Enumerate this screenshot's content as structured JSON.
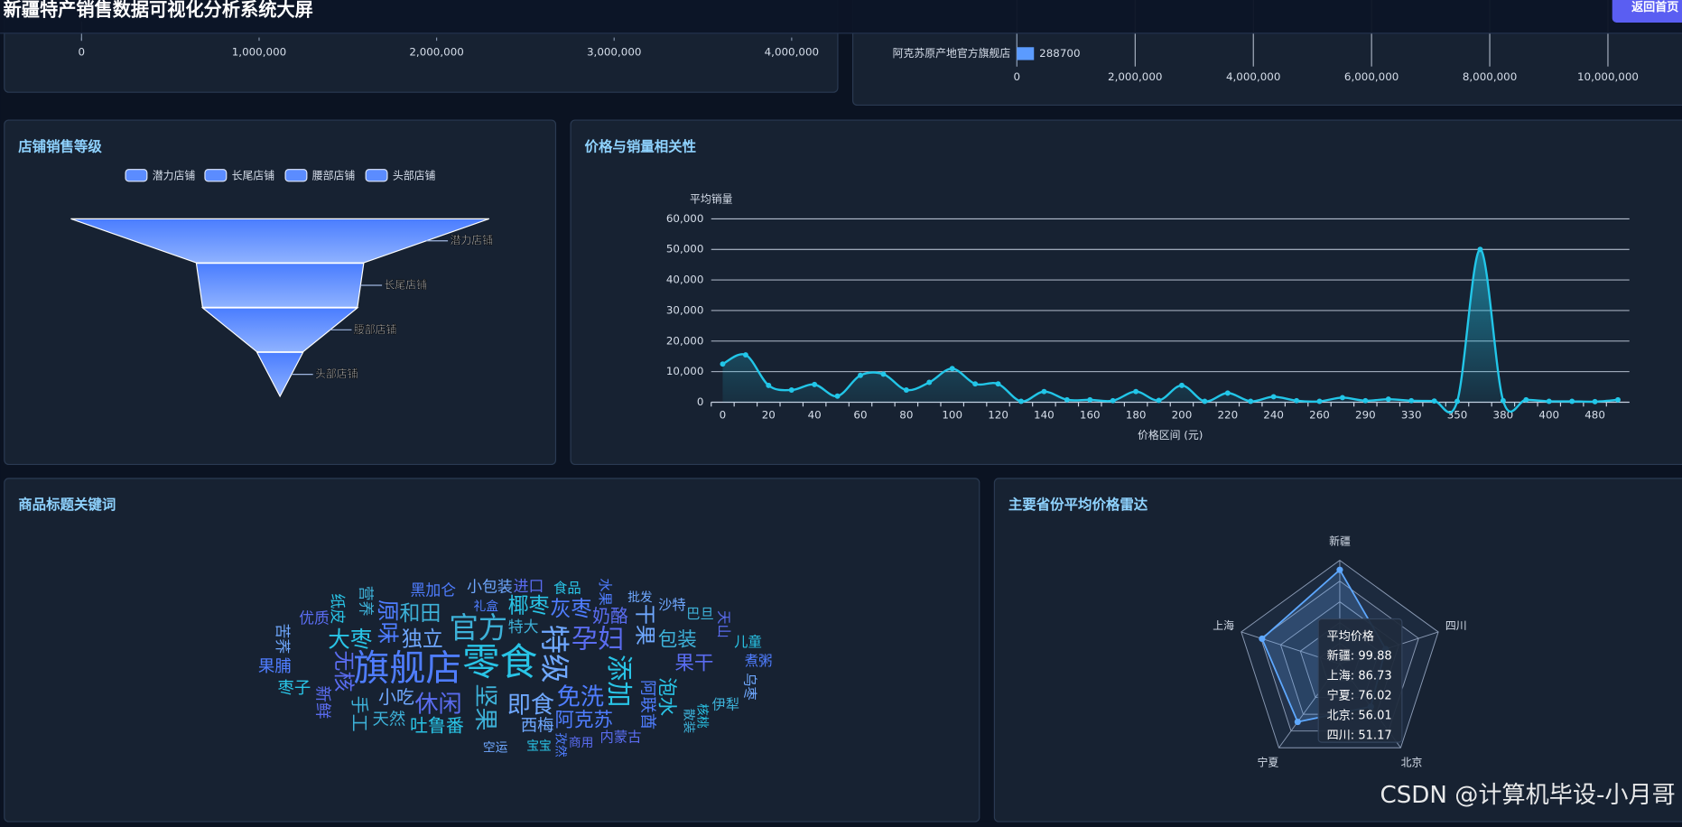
{
  "header": {
    "title": "新疆特产销售数据可视化分析系统大屏",
    "button": "返回首页"
  },
  "watermark": "CSDN @计算机毕设-小月哥",
  "chart_data": [
    {
      "type": "bar",
      "orientation": "horizontal",
      "xlim": [
        0,
        4000000
      ],
      "xticks": [
        0,
        {
          "value": 1000000,
          "label": "1,000,000"
        },
        {
          "value": 2000000,
          "label": "2,000,000"
        },
        {
          "value": 3000000,
          "label": "3,000,000"
        },
        {
          "value": 4000000,
          "label": "4,000,000"
        }
      ]
    },
    {
      "type": "bar",
      "orientation": "horizontal",
      "categories": [
        "阿克苏原产地官方旗舰店"
      ],
      "values": [
        288700
      ],
      "color": "#5b9bff",
      "xlim": [
        0,
        10000000
      ],
      "grid": true,
      "xticks": [
        0,
        {
          "value": 2000000,
          "label": "2,000,000"
        },
        {
          "value": 4000000,
          "label": "4,000,000"
        },
        {
          "value": 6000000,
          "label": "6,000,000"
        },
        {
          "value": 8000000,
          "label": "8,000,000"
        },
        {
          "value": 10000000,
          "label": "10,000,000"
        }
      ]
    },
    {
      "type": "funnel",
      "title": "店铺销售等级",
      "categories": [
        "潜力店铺",
        "长尾店铺",
        "腰部店铺",
        "头部店铺"
      ],
      "values": [
        100,
        40,
        37,
        11
      ],
      "color": "#5b8cff"
    },
    {
      "type": "line",
      "title": "价格与销量相关性",
      "y_label": "平均销量",
      "x_label": "价格区间 (元)",
      "color": "#22c6e8",
      "grid": true,
      "categories": [
        0,
        null,
        20,
        null,
        40,
        null,
        60,
        null,
        80,
        null,
        100,
        null,
        120,
        null,
        140,
        null,
        160,
        null,
        180,
        null,
        200,
        null,
        220,
        null,
        240,
        null,
        260,
        null,
        290,
        null,
        330,
        null,
        350,
        null,
        380,
        null,
        400,
        null,
        480,
        null
      ],
      "values": [
        12500,
        15500,
        5500,
        4000,
        5800,
        2000,
        8800,
        9200,
        4000,
        6500,
        11000,
        6000,
        6000,
        300,
        3500,
        800,
        800,
        500,
        3500,
        600,
        5500,
        300,
        3000,
        300,
        1800,
        500,
        300,
        1500,
        500,
        1000,
        500,
        400,
        300,
        50000,
        500,
        800,
        300,
        300,
        200,
        800
      ],
      "ylim": [
        0,
        60000
      ],
      "yticks": [
        0,
        {
          "value": 10000,
          "label": "10,000"
        },
        {
          "value": 20000,
          "label": "20,000"
        },
        {
          "value": 30000,
          "label": "30,000"
        },
        {
          "value": 40000,
          "label": "40,000"
        },
        {
          "value": 50000,
          "label": "50,000"
        },
        {
          "value": 60000,
          "label": "60,000"
        }
      ]
    },
    {
      "type": "wordcloud",
      "title": "商品标题关键词",
      "colors": [
        "#29c4e6",
        "#4f7dff",
        "#6fa8ff",
        "#3db1d8",
        "#5a6cf0"
      ],
      "words": [
        {
          "text": "零食",
          "weight": 10
        },
        {
          "text": "旗舰店",
          "weight": 9.5
        },
        {
          "text": "特级",
          "weight": 7
        },
        {
          "text": "官方",
          "weight": 7
        },
        {
          "text": "孕妇",
          "weight": 6
        },
        {
          "text": "添加",
          "weight": 6
        },
        {
          "text": "免洗",
          "weight": 5
        },
        {
          "text": "即食",
          "weight": 5
        },
        {
          "text": "坚果",
          "weight": 5
        },
        {
          "text": "休闲",
          "weight": 5
        },
        {
          "text": "大枣",
          "weight": 4.5
        },
        {
          "text": "原味",
          "weight": 4.5
        },
        {
          "text": "独立",
          "weight": 4
        },
        {
          "text": "和田",
          "weight": 4
        },
        {
          "text": "无核",
          "weight": 4
        },
        {
          "text": "椰枣",
          "weight": 4
        },
        {
          "text": "灰枣",
          "weight": 4
        },
        {
          "text": "干果",
          "weight": 4
        },
        {
          "text": "包装",
          "weight": 3.5
        },
        {
          "text": "果干",
          "weight": 3.5
        },
        {
          "text": "泡水",
          "weight": 3.5
        },
        {
          "text": "阿克苏",
          "weight": 3.5
        },
        {
          "text": "小吃",
          "weight": 3
        },
        {
          "text": "手工",
          "weight": 3
        },
        {
          "text": "奶酪",
          "weight": 3
        },
        {
          "text": "吐鲁番",
          "weight": 3
        },
        {
          "text": "阿联酋",
          "weight": 2.5
        },
        {
          "text": "西梅",
          "weight": 2.5
        },
        {
          "text": "天然",
          "weight": 2.5
        },
        {
          "text": "新鲜",
          "weight": 2.5
        },
        {
          "text": "枣子",
          "weight": 2.5
        },
        {
          "text": "果脯",
          "weight": 2.5
        },
        {
          "text": "苦荞",
          "weight": 2
        },
        {
          "text": "特大",
          "weight": 2
        },
        {
          "text": "优质",
          "weight": 2
        },
        {
          "text": "纸皮",
          "weight": 2
        },
        {
          "text": "黑加仑",
          "weight": 2
        },
        {
          "text": "小包装",
          "weight": 2
        },
        {
          "text": "营养",
          "weight": 2
        },
        {
          "text": "进口",
          "weight": 2
        },
        {
          "text": "食品",
          "weight": 1.5
        },
        {
          "text": "水果",
          "weight": 1.5
        },
        {
          "text": "沙特",
          "weight": 1.5
        },
        {
          "text": "巴旦",
          "weight": 1.5
        },
        {
          "text": "天山",
          "weight": 1.5
        },
        {
          "text": "儿童",
          "weight": 1.5
        },
        {
          "text": "煮粥",
          "weight": 1.5
        },
        {
          "text": "乌枣",
          "weight": 1.5
        },
        {
          "text": "伊犁",
          "weight": 1.5
        },
        {
          "text": "内蒙古",
          "weight": 1.5
        },
        {
          "text": "核桃",
          "weight": 1
        },
        {
          "text": "礼盒",
          "weight": 1
        },
        {
          "text": "批发",
          "weight": 1
        },
        {
          "text": "散装",
          "weight": 1
        },
        {
          "text": "商用",
          "weight": 1
        },
        {
          "text": "宝宝",
          "weight": 1
        },
        {
          "text": "孜然",
          "weight": 1
        },
        {
          "text": "空运",
          "weight": 1
        }
      ]
    },
    {
      "type": "radar",
      "title": "主要省份平均价格雷达",
      "indicators": [
        "新疆",
        "四川",
        "北京",
        "宁夏",
        "上海"
      ],
      "rlim": [
        0,
        110
      ],
      "color": "#5ea8ff",
      "series": [
        {
          "name": "平均价格",
          "values": [
            99.88,
            51.17,
            56.01,
            76.02,
            86.73
          ]
        }
      ],
      "tooltip": {
        "title": "平均价格",
        "lines": [
          "新疆: 99.88",
          "上海: 86.73",
          "宁夏: 76.02",
          "北京: 56.01",
          "四川: 51.17"
        ]
      }
    }
  ]
}
